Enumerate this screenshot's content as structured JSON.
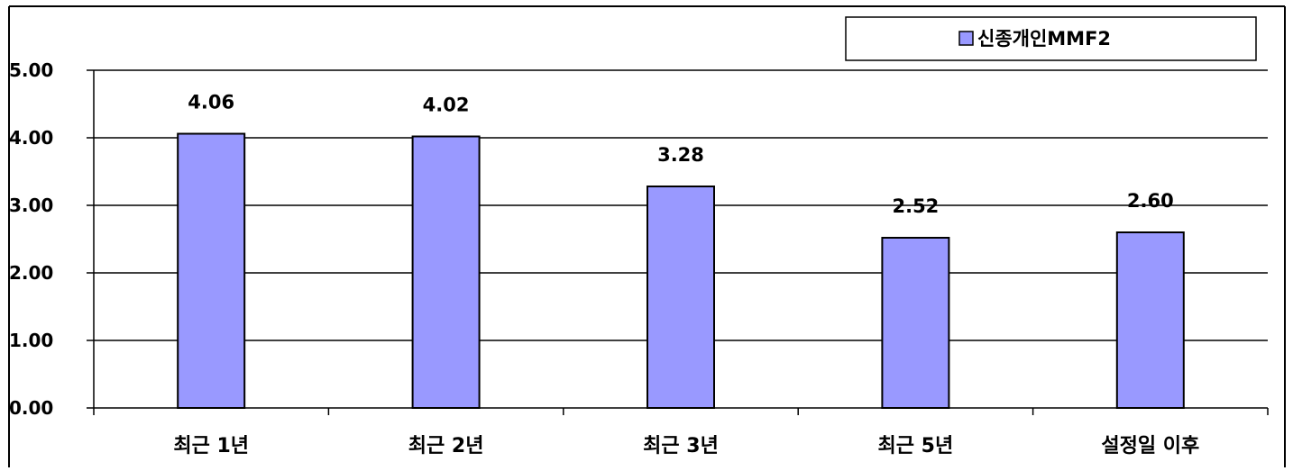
{
  "chart_data": {
    "type": "bar",
    "categories": [
      "최근 1년",
      "최근 2년",
      "최근 3년",
      "최근 5년",
      "설정일 이후"
    ],
    "series": [
      {
        "name": "신종개인MMF2",
        "values": [
          4.06,
          4.02,
          3.28,
          2.52,
          2.6
        ],
        "color": "#9999ff"
      }
    ],
    "data_labels": [
      "4.06",
      "4.02",
      "3.28",
      "2.52",
      "2.60"
    ],
    "y_ticks": [
      "0.00",
      "1.00",
      "2.00",
      "3.00",
      "4.00",
      "5.00"
    ],
    "ylim": [
      0,
      5
    ],
    "grid": true,
    "legend_position": "top-right",
    "title": "",
    "xlabel": "",
    "ylabel": ""
  }
}
